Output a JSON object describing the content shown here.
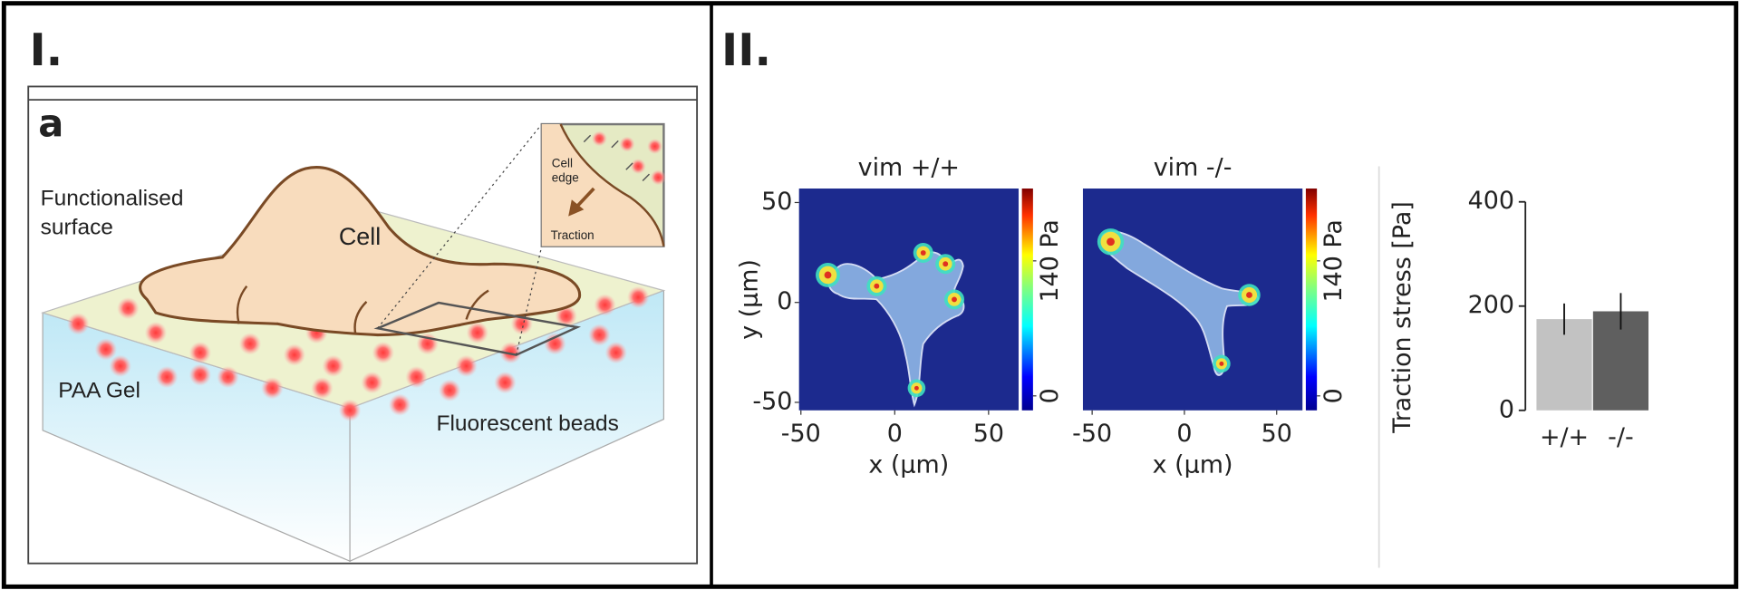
{
  "panel_1": {
    "label": "I.",
    "sublabel": "a",
    "surface_label": [
      "Functionalised",
      "surface"
    ],
    "cell_label": "Cell",
    "gel_label": "PAA Gel",
    "beads_label": "Fluorescent beads",
    "inset_edge_label": [
      "Cell",
      "edge"
    ],
    "inset_traction_label": "Traction"
  },
  "panel_2": {
    "label": "II.",
    "heatmaps": [
      {
        "title": "vim +/+",
        "x_label": "x (µm)",
        "y_label": "y (µm)",
        "xlim": [
          -51,
          66
        ],
        "ylim": [
          -54,
          57
        ],
        "xticks": [
          -50,
          0,
          50
        ],
        "yticks": [
          50,
          0,
          -50
        ],
        "colorbar_lim": [
          -15,
          215
        ],
        "colorbar_ticks": [
          {
            "value": 140,
            "label": "140 Pa"
          },
          0
        ]
      },
      {
        "title": "vim -/-",
        "x_label": "x (µm)",
        "xlim": [
          -55,
          64
        ],
        "ylim": [
          -54,
          57
        ],
        "xticks": [
          -50,
          0,
          50
        ],
        "colorbar_lim": [
          -15,
          215
        ],
        "colorbar_ticks": [
          {
            "value": 140,
            "label": "140 Pa"
          },
          0
        ]
      }
    ]
  },
  "chart_data": {
    "type": "bar",
    "y_label": "Traction stress [Pa]",
    "categories": [
      "+/+",
      "-/-"
    ],
    "values": [
      175,
      190
    ],
    "errors": [
      30,
      35
    ],
    "colors": [
      "#c2c2c2",
      "#5f5f5f"
    ],
    "ylim": [
      0,
      400
    ],
    "yticks": [
      0,
      200,
      400
    ]
  }
}
